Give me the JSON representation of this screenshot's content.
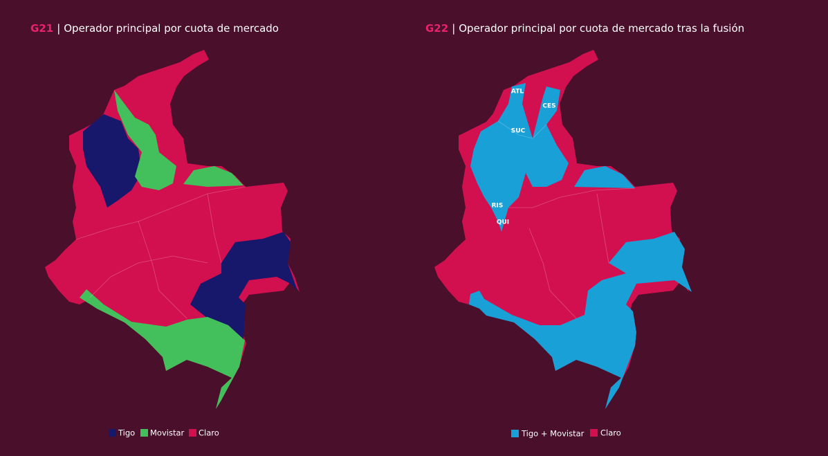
{
  "maps": [
    {
      "code": "G21",
      "separator": "|",
      "title": "Operador principal por cuota de mercado",
      "legend": [
        {
          "name": "Tigo",
          "color": "#17186b"
        },
        {
          "name": "Movistar",
          "color": "#43bf5c"
        },
        {
          "name": "Claro",
          "color": "#d3104f"
        }
      ]
    },
    {
      "code": "G22",
      "separator": "|",
      "title": "Operador principal por cuota de mercado tras la fusión",
      "legend": [
        {
          "name": "Tigo + Movistar",
          "color": "#19a0d6"
        },
        {
          "name": "Claro",
          "color": "#d3104f"
        }
      ],
      "labels": [
        "ATL",
        "CES",
        "SUC",
        "RIS",
        "QUI"
      ]
    }
  ]
}
